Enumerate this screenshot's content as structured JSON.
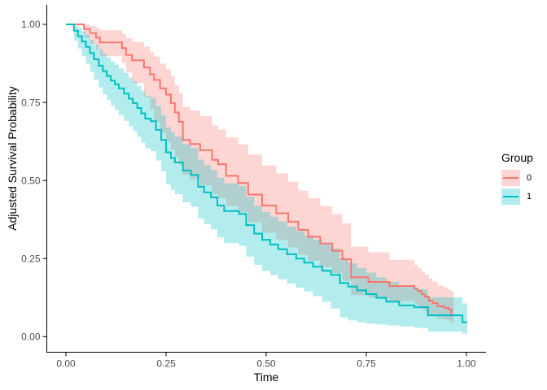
{
  "chart_data": {
    "type": "line",
    "subtype": "survival-step-curves-with-confidence-bands",
    "title": "",
    "xlabel": "Time",
    "ylabel": "Adjusted Survival Probability",
    "xlim": [
      0,
      1
    ],
    "ylim": [
      0,
      1
    ],
    "grid": false,
    "x_ticks": {
      "values": [
        0,
        0.25,
        0.5,
        0.75,
        1
      ],
      "labels": [
        "0.00",
        "0.25",
        "0.50",
        "0.75",
        "1.00"
      ]
    },
    "y_ticks": {
      "values": [
        0,
        0.25,
        0.5,
        0.75,
        1
      ],
      "labels": [
        "0.00",
        "0.25",
        "0.50",
        "0.75",
        "1.00"
      ]
    },
    "legend": {
      "title": "Group",
      "position": "right",
      "entries": [
        {
          "label": "0",
          "line_color": "#F8766D",
          "fill_color": "#FDD6D3"
        },
        {
          "label": "1",
          "line_color": "#00BFC4",
          "fill_color": "#B3ECED"
        }
      ]
    },
    "colors": {
      "axis_line": "#000000",
      "tick_label": "#4D4D4D",
      "axis_title": "#000000",
      "background": "#FFFFFF"
    },
    "band_opacity": 0.3,
    "line_width": 2,
    "series": [
      {
        "name": "0",
        "color": "#F8766D",
        "t_end": 0.968,
        "points": [
          [
            0.0,
            1.0,
            1.0,
            1.0
          ],
          [
            0.045,
            0.985,
            0.958,
            0.999
          ],
          [
            0.06,
            0.972,
            0.938,
            0.995
          ],
          [
            0.075,
            0.958,
            0.92,
            0.989
          ],
          [
            0.085,
            0.942,
            0.898,
            0.981
          ],
          [
            0.14,
            0.924,
            0.876,
            0.97
          ],
          [
            0.15,
            0.902,
            0.846,
            0.956
          ],
          [
            0.165,
            0.885,
            0.812,
            0.944
          ],
          [
            0.195,
            0.862,
            0.768,
            0.928
          ],
          [
            0.21,
            0.84,
            0.728,
            0.911
          ],
          [
            0.22,
            0.822,
            0.688,
            0.897
          ],
          [
            0.235,
            0.795,
            0.653,
            0.874
          ],
          [
            0.25,
            0.775,
            0.624,
            0.856
          ],
          [
            0.262,
            0.748,
            0.598,
            0.833
          ],
          [
            0.272,
            0.718,
            0.576,
            0.806
          ],
          [
            0.282,
            0.688,
            0.552,
            0.779
          ],
          [
            0.292,
            0.63,
            0.518,
            0.736
          ],
          [
            0.31,
            0.617,
            0.504,
            0.724
          ],
          [
            0.335,
            0.597,
            0.484,
            0.706
          ],
          [
            0.365,
            0.566,
            0.456,
            0.676
          ],
          [
            0.38,
            0.552,
            0.443,
            0.663
          ],
          [
            0.4,
            0.515,
            0.418,
            0.638
          ],
          [
            0.43,
            0.492,
            0.398,
            0.616
          ],
          [
            0.455,
            0.455,
            0.366,
            0.583
          ],
          [
            0.49,
            0.42,
            0.333,
            0.548
          ],
          [
            0.525,
            0.395,
            0.31,
            0.523
          ],
          [
            0.555,
            0.368,
            0.286,
            0.496
          ],
          [
            0.58,
            0.342,
            0.263,
            0.468
          ],
          [
            0.605,
            0.32,
            0.243,
            0.443
          ],
          [
            0.635,
            0.298,
            0.223,
            0.418
          ],
          [
            0.665,
            0.275,
            0.203,
            0.393
          ],
          [
            0.69,
            0.248,
            0.178,
            0.363
          ],
          [
            0.712,
            0.19,
            0.133,
            0.288
          ],
          [
            0.755,
            0.175,
            0.124,
            0.27
          ],
          [
            0.808,
            0.162,
            0.114,
            0.246
          ],
          [
            0.87,
            0.154,
            0.104,
            0.23
          ],
          [
            0.878,
            0.146,
            0.097,
            0.22
          ],
          [
            0.888,
            0.136,
            0.089,
            0.208
          ],
          [
            0.896,
            0.128,
            0.081,
            0.198
          ],
          [
            0.906,
            0.115,
            0.071,
            0.186
          ],
          [
            0.916,
            0.107,
            0.065,
            0.176
          ],
          [
            0.928,
            0.097,
            0.057,
            0.163
          ],
          [
            0.945,
            0.092,
            0.054,
            0.156
          ],
          [
            0.955,
            0.088,
            0.051,
            0.15
          ],
          [
            0.962,
            0.068,
            0.044,
            0.146
          ]
        ]
      },
      {
        "name": "1",
        "color": "#00BFC4",
        "t_end": 1.002,
        "points": [
          [
            0.0,
            1.0,
            1.0,
            1.0
          ],
          [
            0.02,
            0.98,
            0.948,
            0.995
          ],
          [
            0.03,
            0.962,
            0.923,
            0.988
          ],
          [
            0.04,
            0.945,
            0.898,
            0.978
          ],
          [
            0.05,
            0.928,
            0.873,
            0.967
          ],
          [
            0.06,
            0.908,
            0.848,
            0.951
          ],
          [
            0.07,
            0.888,
            0.823,
            0.937
          ],
          [
            0.082,
            0.868,
            0.798,
            0.921
          ],
          [
            0.092,
            0.85,
            0.776,
            0.907
          ],
          [
            0.102,
            0.835,
            0.758,
            0.894
          ],
          [
            0.112,
            0.82,
            0.74,
            0.881
          ],
          [
            0.122,
            0.808,
            0.726,
            0.871
          ],
          [
            0.132,
            0.795,
            0.71,
            0.859
          ],
          [
            0.145,
            0.778,
            0.691,
            0.844
          ],
          [
            0.157,
            0.762,
            0.673,
            0.829
          ],
          [
            0.167,
            0.748,
            0.658,
            0.817
          ],
          [
            0.178,
            0.732,
            0.64,
            0.802
          ],
          [
            0.188,
            0.715,
            0.621,
            0.787
          ],
          [
            0.198,
            0.698,
            0.603,
            0.771
          ],
          [
            0.212,
            0.69,
            0.594,
            0.764
          ],
          [
            0.225,
            0.662,
            0.564,
            0.739
          ],
          [
            0.238,
            0.63,
            0.53,
            0.709
          ],
          [
            0.25,
            0.59,
            0.488,
            0.671
          ],
          [
            0.262,
            0.572,
            0.47,
            0.654
          ],
          [
            0.272,
            0.558,
            0.456,
            0.641
          ],
          [
            0.292,
            0.532,
            0.43,
            0.617
          ],
          [
            0.312,
            0.518,
            0.416,
            0.604
          ],
          [
            0.33,
            0.48,
            0.378,
            0.567
          ],
          [
            0.345,
            0.462,
            0.36,
            0.549
          ],
          [
            0.362,
            0.446,
            0.344,
            0.534
          ],
          [
            0.378,
            0.42,
            0.318,
            0.509
          ],
          [
            0.395,
            0.402,
            0.3,
            0.491
          ],
          [
            0.432,
            0.393,
            0.291,
            0.482
          ],
          [
            0.45,
            0.357,
            0.256,
            0.447
          ],
          [
            0.47,
            0.33,
            0.23,
            0.419
          ],
          [
            0.49,
            0.31,
            0.211,
            0.399
          ],
          [
            0.51,
            0.295,
            0.197,
            0.384
          ],
          [
            0.53,
            0.28,
            0.184,
            0.369
          ],
          [
            0.552,
            0.264,
            0.17,
            0.353
          ],
          [
            0.575,
            0.25,
            0.157,
            0.338
          ],
          [
            0.595,
            0.237,
            0.145,
            0.324
          ],
          [
            0.617,
            0.224,
            0.13,
            0.31
          ],
          [
            0.64,
            0.211,
            0.112,
            0.296
          ],
          [
            0.662,
            0.198,
            0.09,
            0.282
          ],
          [
            0.684,
            0.172,
            0.062,
            0.25
          ],
          [
            0.705,
            0.16,
            0.052,
            0.235
          ],
          [
            0.727,
            0.148,
            0.046,
            0.22
          ],
          [
            0.75,
            0.136,
            0.042,
            0.205
          ],
          [
            0.775,
            0.124,
            0.039,
            0.19
          ],
          [
            0.8,
            0.112,
            0.036,
            0.176
          ],
          [
            0.832,
            0.1,
            0.032,
            0.16
          ],
          [
            0.87,
            0.094,
            0.028,
            0.152
          ],
          [
            0.904,
            0.068,
            0.016,
            0.126
          ],
          [
            0.99,
            0.046,
            0.01,
            0.106
          ]
        ]
      }
    ]
  }
}
